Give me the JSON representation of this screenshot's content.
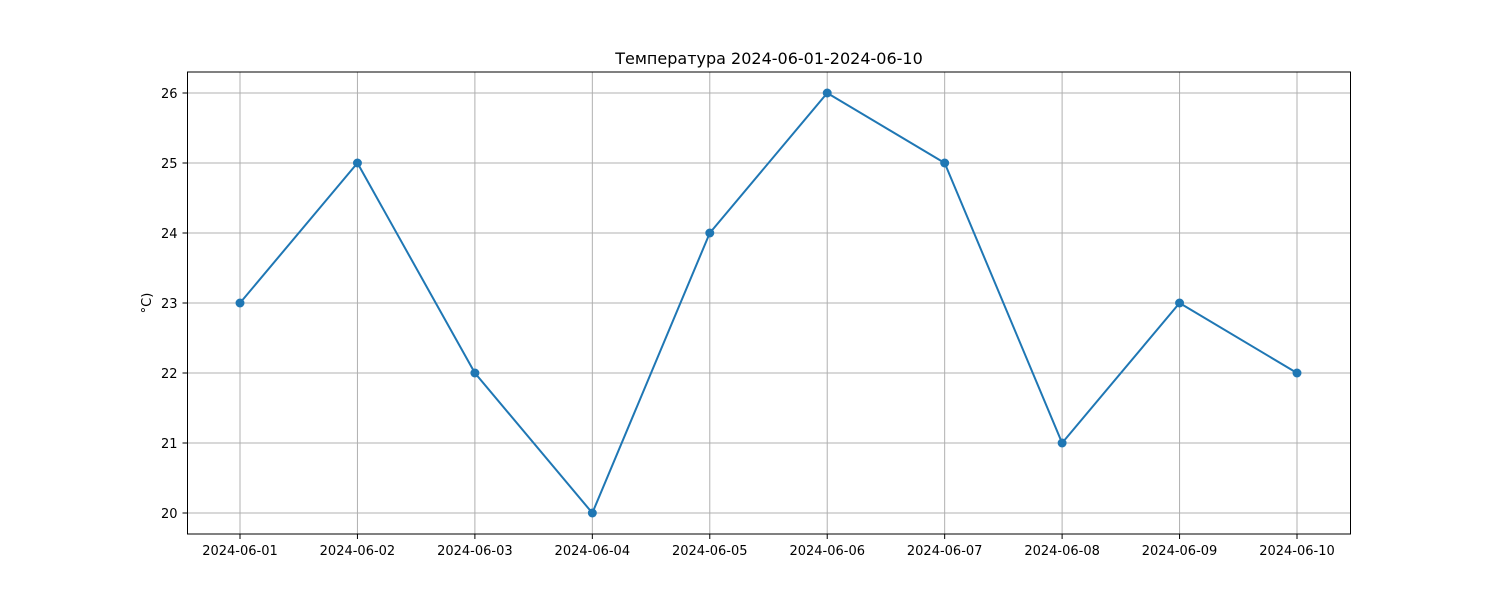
{
  "chart_data": {
    "type": "line",
    "title": "Температура 2024-06-01-2024-06-10",
    "xlabel": "",
    "ylabel": "°C)",
    "x": [
      "2024-06-01",
      "2024-06-02",
      "2024-06-03",
      "2024-06-04",
      "2024-06-05",
      "2024-06-06",
      "2024-06-07",
      "2024-06-08",
      "2024-06-09",
      "2024-06-10"
    ],
    "series": [
      {
        "values": [
          23,
          25,
          22,
          20,
          24,
          26,
          25,
          21,
          23,
          22
        ],
        "color": "#1f77b4",
        "marker": "circle"
      }
    ],
    "yticks": [
      20,
      21,
      22,
      23,
      24,
      25,
      26
    ],
    "ylim": [
      19.7,
      26.3
    ],
    "grid": true,
    "legend": "none"
  }
}
